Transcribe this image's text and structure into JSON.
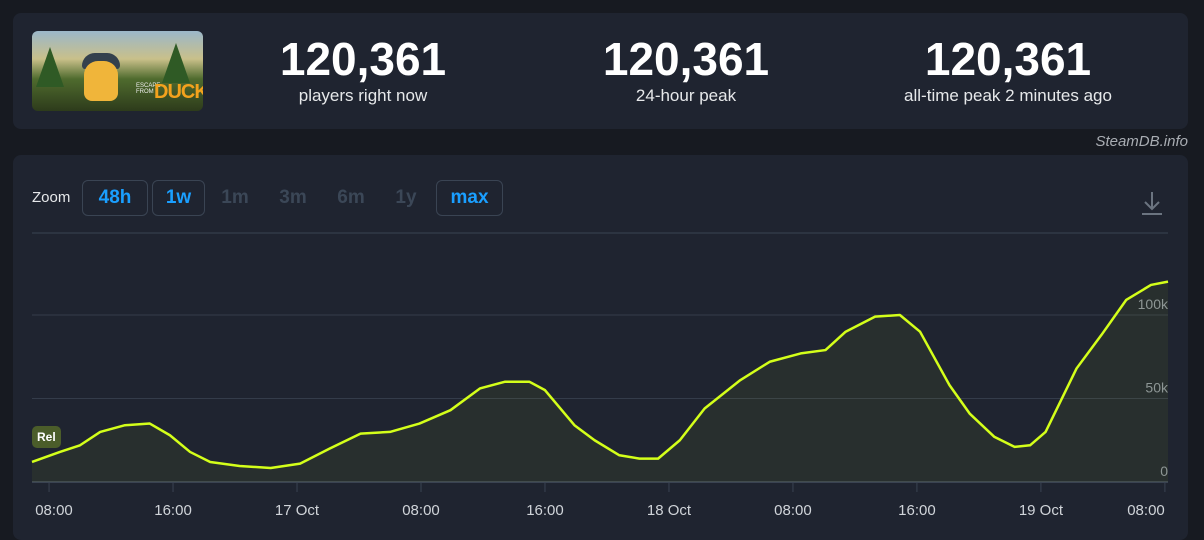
{
  "header": {
    "logo_text": "ESCAPE FROM DUCKOV",
    "stats": [
      {
        "value": "120,361",
        "label": "players right now"
      },
      {
        "value": "120,361",
        "label": "24-hour peak"
      },
      {
        "value": "120,361",
        "label": "all-time peak 2 minutes ago"
      }
    ],
    "credit": "SteamDB.info"
  },
  "toolbar": {
    "zoom_label": "Zoom",
    "buttons": [
      {
        "label": "48h",
        "enabled": true
      },
      {
        "label": "1w",
        "enabled": true
      },
      {
        "label": "1m",
        "enabled": false
      },
      {
        "label": "3m",
        "enabled": false
      },
      {
        "label": "6m",
        "enabled": false
      },
      {
        "label": "1y",
        "enabled": false
      },
      {
        "label": "max",
        "enabled": true
      }
    ],
    "download_icon": "download-icon"
  },
  "chart_data": {
    "type": "line",
    "series": [
      {
        "name": "Players",
        "color": "#d4ff1a"
      }
    ],
    "x_unit": "hours since 16 Oct 00:00",
    "x": [
      6.9,
      8.7,
      10.0,
      11.3,
      12.9,
      14.5,
      15.8,
      17.1,
      18.4,
      20.3,
      22.3,
      24.2,
      26.1,
      28.1,
      30.0,
      31.9,
      33.9,
      35.8,
      37.4,
      39.0,
      40.0,
      41.9,
      43.2,
      44.8,
      46.1,
      47.3,
      48.7,
      50.3,
      52.6,
      54.5,
      56.5,
      58.1,
      59.4,
      61.3,
      62.9,
      64.2,
      66.1,
      67.4,
      69.0,
      70.3,
      71.3,
      72.3,
      74.3,
      75.9,
      77.5,
      79.1,
      80.2
    ],
    "y": [
      12,
      18,
      22,
      30,
      34,
      35,
      28,
      18,
      12,
      9.6,
      8.4,
      11,
      20,
      29,
      30,
      35,
      43,
      56,
      60,
      60,
      55,
      34,
      25,
      16,
      14,
      14,
      25,
      44,
      61,
      72,
      77,
      79,
      90,
      99,
      100,
      90,
      58,
      41,
      27,
      21,
      22,
      30,
      68,
      88,
      109,
      118,
      120
    ],
    "xlim": [
      6.9,
      80.2
    ],
    "ylim": [
      0,
      149
    ],
    "x_ticks": [
      {
        "v": 8,
        "label": "08:00"
      },
      {
        "v": 16,
        "label": "16:00"
      },
      {
        "v": 24,
        "label": "17 Oct"
      },
      {
        "v": 32,
        "label": "08:00"
      },
      {
        "v": 40,
        "label": "16:00"
      },
      {
        "v": 48,
        "label": "18 Oct"
      },
      {
        "v": 56,
        "label": "08:00"
      },
      {
        "v": 64,
        "label": "16:00"
      },
      {
        "v": 72,
        "label": "19 Oct"
      },
      {
        "v": 80,
        "label": "08:00"
      }
    ],
    "y_ticks": [
      {
        "v": 0,
        "label": "0"
      },
      {
        "v": 50,
        "label": "50k"
      },
      {
        "v": 100,
        "label": "100k"
      }
    ],
    "y_unit": "thousands of players",
    "flag": "Rel"
  }
}
